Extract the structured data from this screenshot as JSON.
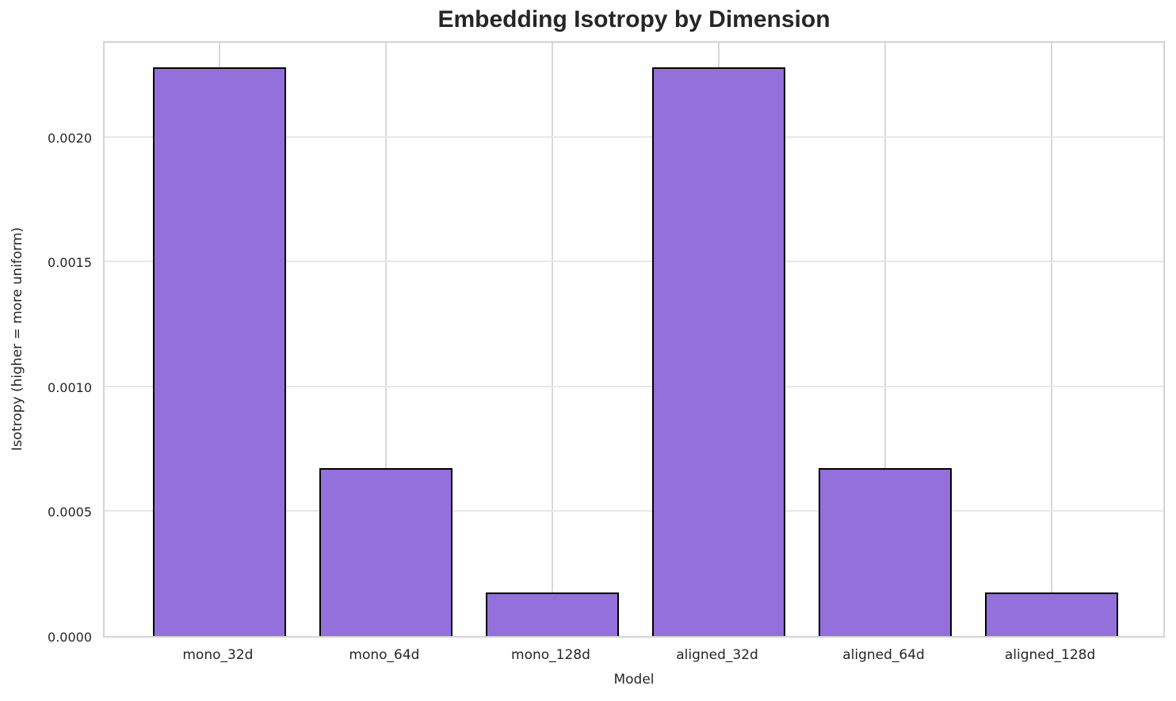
{
  "chart_data": {
    "type": "bar",
    "title": "Embedding Isotropy by Dimension",
    "xlabel": "Model",
    "ylabel": "Isotropy (higher = more uniform)",
    "categories": [
      "mono_32d",
      "mono_64d",
      "mono_128d",
      "aligned_32d",
      "aligned_64d",
      "aligned_128d"
    ],
    "values": [
      0.00228,
      0.000673,
      0.000175,
      0.00228,
      0.000673,
      0.000175
    ],
    "ylim": [
      0,
      0.00239
    ],
    "yticks": [
      {
        "value": 0.0,
        "label": "0.0000"
      },
      {
        "value": 0.0005,
        "label": "0.0005"
      },
      {
        "value": 0.001,
        "label": "0.0010"
      },
      {
        "value": 0.0015,
        "label": "0.0015"
      },
      {
        "value": 0.002,
        "label": "0.0020"
      }
    ],
    "grid": true,
    "legend_position": "none",
    "bar_width_fraction": 0.8,
    "colors": {
      "bar_fill": "#9370db",
      "bar_edge": "#000000",
      "gridline": "#d8d8d8",
      "spine": "#d4d4d4",
      "text": "#262626",
      "background": "#ffffff"
    }
  }
}
